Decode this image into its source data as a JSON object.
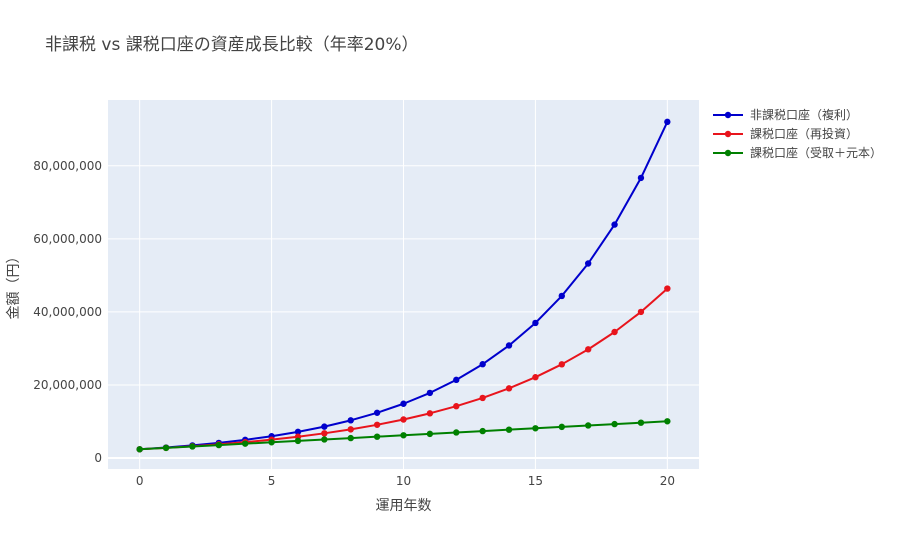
{
  "chart_data": {
    "type": "line",
    "title": "非課税 vs 課税口座の資産成長比較（年率20%）",
    "xlabel": "運用年数",
    "ylabel": "金額（円）",
    "xlim": [
      -1.2,
      21.2
    ],
    "ylim": [
      -3000000,
      98000000
    ],
    "x_ticks": [
      0,
      5,
      10,
      15,
      20
    ],
    "x_tick_labels": [
      "0",
      "5",
      "10",
      "15",
      "20"
    ],
    "y_ticks": [
      0,
      20000000,
      40000000,
      60000000,
      80000000
    ],
    "y_tick_labels": [
      "0",
      "20,000,000",
      "40,000,000",
      "60,000,000",
      "80,000,000"
    ],
    "grid": true,
    "legend_position": "top-right-outside",
    "x": [
      0,
      1,
      2,
      3,
      4,
      5,
      6,
      7,
      8,
      9,
      10,
      11,
      12,
      13,
      14,
      15,
      16,
      17,
      18,
      19,
      20
    ],
    "series": [
      {
        "name": "非課税口座（複利）",
        "color": "#0000cc",
        "values": [
          2400000,
          2880000,
          3456000,
          4147200,
          4976640,
          5971968,
          7166362,
          8599634,
          10319561,
          12383473,
          14860168,
          17832202,
          21398642,
          25678370,
          30814044,
          36976853,
          44372224,
          53246668,
          63896002,
          76675203,
          92010243
        ]
      },
      {
        "name": "課税口座（再投資）",
        "color": "#e8141c",
        "values": [
          2400000,
          2783000,
          3227000,
          3742000,
          4340000,
          5032000,
          5835000,
          6766000,
          7846000,
          9099000,
          10551000,
          12235000,
          14188000,
          16452000,
          19078000,
          22123000,
          25654000,
          29748000,
          34496000,
          40001000,
          46385000
        ]
      },
      {
        "name": "課税口座（受取＋元本）",
        "color": "#008000",
        "values": [
          2400000,
          2783000,
          3166000,
          3549000,
          3932000,
          4315000,
          4698000,
          5081000,
          5464000,
          5847000,
          6230000,
          6613000,
          6996000,
          7379000,
          7762000,
          8145000,
          8528000,
          8911000,
          9294000,
          9677000,
          10060000
        ]
      }
    ]
  }
}
